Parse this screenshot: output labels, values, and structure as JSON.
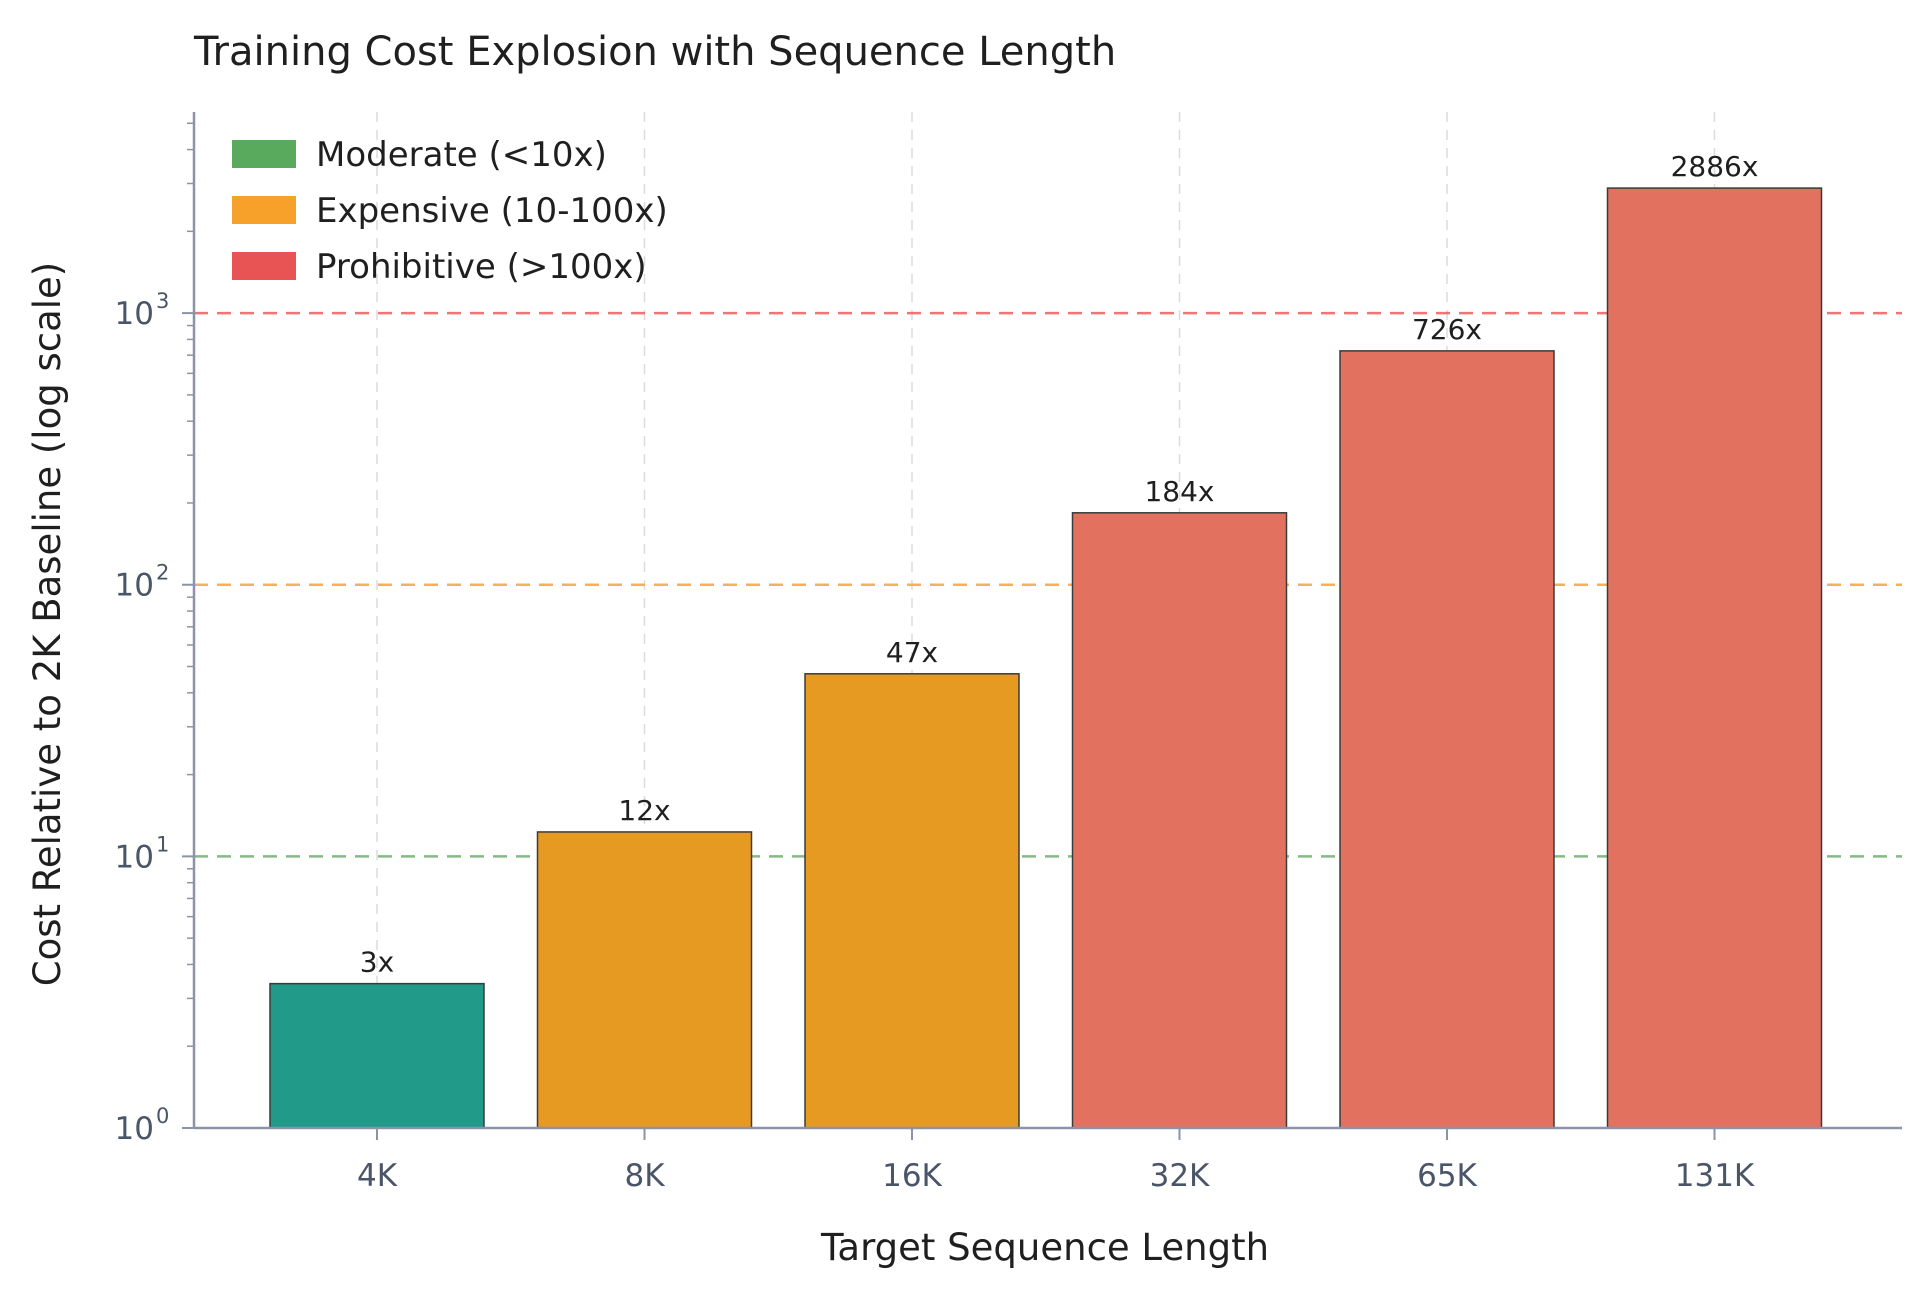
{
  "chart_data": {
    "type": "bar",
    "title": "Training Cost Explosion with Sequence Length",
    "xlabel": "Target Sequence Length",
    "ylabel": "Cost Relative to 2K Baseline (log scale)",
    "yscale": "log",
    "ylim": [
      1,
      5500
    ],
    "yticks": [
      {
        "value": 1,
        "base": "10",
        "exp": "0"
      },
      {
        "value": 10,
        "base": "10",
        "exp": "1"
      },
      {
        "value": 100,
        "base": "10",
        "exp": "2"
      },
      {
        "value": 1000,
        "base": "10",
        "exp": "3"
      }
    ],
    "grid": "vertical dashed",
    "categories": [
      "4K",
      "8K",
      "16K",
      "32K",
      "65K",
      "131K"
    ],
    "values": [
      3.4,
      12.3,
      47,
      184,
      726,
      2886
    ],
    "data_labels": [
      "3x",
      "12x",
      "47x",
      "184x",
      "726x",
      "2886x"
    ],
    "bar_tiers": [
      "moderate",
      "expensive",
      "expensive",
      "prohibitive",
      "prohibitive",
      "prohibitive"
    ],
    "tier_colors": {
      "moderate": "#229a8a",
      "expensive": "#e69a22",
      "prohibitive": "#e2725f"
    },
    "reference_lines": [
      {
        "value": 10,
        "color": "#6fb06f"
      },
      {
        "value": 100,
        "color": "#f3a440"
      },
      {
        "value": 1000,
        "color": "#ea6060"
      }
    ],
    "legend": {
      "placement": "top-left",
      "entries": [
        {
          "label": "Moderate (<10x)",
          "color": "#5aaa5e"
        },
        {
          "label": "Expensive (10-100x)",
          "color": "#f7a12b"
        },
        {
          "label": "Prohibitive (>100x)",
          "color": "#e85454"
        }
      ]
    }
  }
}
